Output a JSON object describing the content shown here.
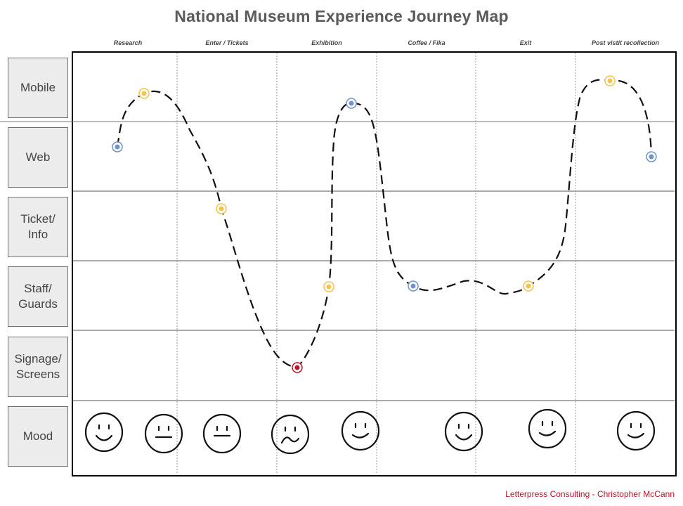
{
  "title": "National Museum Experience Journey Map",
  "phases": [
    "Research",
    "Enter / Tickets",
    "Exhibition",
    "Coffee / Fika",
    "Exit",
    "Post vistit recollection"
  ],
  "rows": [
    {
      "line1": "Mobile",
      "line2": ""
    },
    {
      "line1": "Web",
      "line2": ""
    },
    {
      "line1": "Ticket/",
      "line2": "Info"
    },
    {
      "line1": "Staff/",
      "line2": "Guards"
    },
    {
      "line1": "Signage/",
      "line2": "Screens"
    },
    {
      "line1": "Mood",
      "line2": ""
    }
  ],
  "touchpoint_colors": {
    "blue": "#6f93c9",
    "yellow": "#f2c44e",
    "red": "#c0162c"
  },
  "touchpoints": [
    {
      "channel": "Web",
      "color": "blue"
    },
    {
      "channel": "Mobile",
      "color": "yellow"
    },
    {
      "channel": "Ticket/Info",
      "color": "yellow"
    },
    {
      "channel": "Signage/Screens",
      "color": "red"
    },
    {
      "channel": "Staff/Guards",
      "color": "yellow"
    },
    {
      "channel": "Mobile",
      "color": "blue"
    },
    {
      "channel": "Staff/Guards",
      "color": "blue"
    },
    {
      "channel": "Staff/Guards",
      "color": "yellow"
    },
    {
      "channel": "Mobile",
      "color": "yellow"
    },
    {
      "channel": "Web",
      "color": "blue"
    }
  ],
  "moods": [
    "happy",
    "neutral",
    "neutral",
    "sad",
    "happy",
    "happy",
    "happy",
    "happy"
  ],
  "credit": "Letterpress Consulting - Christopher McCann"
}
